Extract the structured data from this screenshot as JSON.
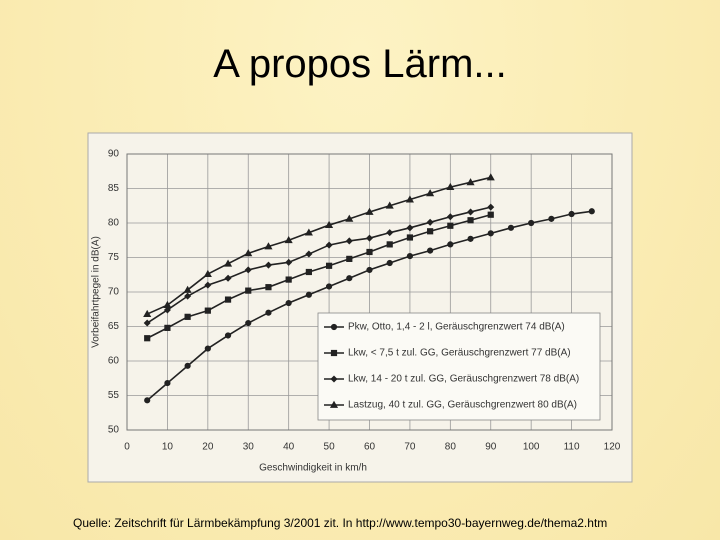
{
  "title": "A propos Lärm...",
  "source": "Quelle: Zeitschrift für Lärmbekämpfung 3/2001 zit. In http://www.tempo30-bayernweg.de/thema2.htm",
  "chart_data": {
    "type": "line",
    "x_label": "Geschwindigkeit in km/h",
    "y_label": "Vorbeifahrtpegel in dB(A)",
    "xlim": [
      0,
      120
    ],
    "xticks": [
      0,
      10,
      20,
      30,
      40,
      50,
      60,
      70,
      80,
      90,
      100,
      110,
      120
    ],
    "ylim": [
      50,
      90
    ],
    "yticks": [
      50,
      55,
      60,
      65,
      70,
      75,
      80,
      85,
      90
    ],
    "grid": true,
    "legend": "lower right",
    "series": [
      {
        "name": "Pkw, Otto, 1,4 - 2 l, Geräuschgrenzwert 74 dB(A)",
        "color": "#222222",
        "marker": "circle",
        "x": [
          5,
          10,
          15,
          20,
          25,
          30,
          35,
          40,
          45,
          50,
          55,
          60,
          65,
          70,
          75,
          80,
          85,
          90,
          95,
          100,
          105,
          110,
          115
        ],
        "values": [
          54.3,
          56.8,
          59.3,
          61.8,
          63.7,
          65.5,
          67.0,
          68.4,
          69.6,
          70.8,
          72.0,
          73.2,
          74.2,
          75.2,
          76.0,
          76.9,
          77.7,
          78.5,
          79.3,
          80.0,
          80.6,
          81.3,
          81.7
        ]
      },
      {
        "name": "Lkw, < 7,5 t zul. GG, Geräuschgrenzwert 77 dB(A)",
        "color": "#222222",
        "marker": "square",
        "x": [
          5,
          10,
          15,
          20,
          25,
          30,
          35,
          40,
          45,
          50,
          55,
          60,
          65,
          70,
          75,
          80,
          85,
          90
        ],
        "values": [
          63.3,
          64.8,
          66.4,
          67.3,
          68.9,
          70.2,
          70.7,
          71.8,
          72.9,
          73.8,
          74.8,
          75.8,
          76.9,
          77.9,
          78.8,
          79.6,
          80.4,
          81.2
        ]
      },
      {
        "name": "Lkw, 14 - 20 t zul. GG, Geräuschgrenzwert 78 dB(A)",
        "color": "#222222",
        "marker": "diamond",
        "x": [
          5,
          10,
          15,
          20,
          25,
          30,
          35,
          40,
          45,
          50,
          55,
          60,
          65,
          70,
          75,
          80,
          85,
          90
        ],
        "values": [
          65.5,
          67.4,
          69.4,
          71.0,
          72.0,
          73.2,
          73.9,
          74.3,
          75.5,
          76.8,
          77.4,
          77.8,
          78.6,
          79.3,
          80.1,
          80.9,
          81.6,
          82.3
        ]
      },
      {
        "name": "Lastzug, 40 t zul. GG, Geräuschgrenzwert 80 dB(A)",
        "color": "#222222",
        "marker": "triangle",
        "x": [
          5,
          10,
          15,
          20,
          25,
          30,
          35,
          40,
          45,
          50,
          55,
          60,
          65,
          70,
          75,
          80,
          85,
          90
        ],
        "values": [
          66.8,
          68.1,
          70.3,
          72.6,
          74.1,
          75.6,
          76.6,
          77.5,
          78.6,
          79.7,
          80.6,
          81.6,
          82.5,
          83.4,
          84.3,
          85.2,
          85.9,
          86.6
        ]
      }
    ]
  }
}
